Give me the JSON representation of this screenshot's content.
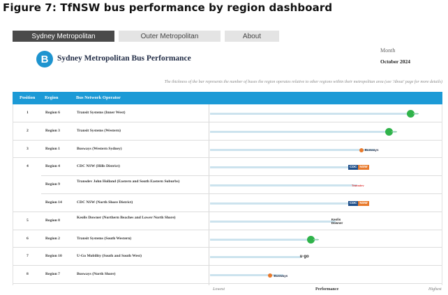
{
  "figure_title": "Figure 7: TfNSW bus performance by region dashboard",
  "tabs": [
    {
      "label": "Sydney Metropolitan",
      "active": true
    },
    {
      "label": "Outer Metropolitan",
      "active": false
    },
    {
      "label": "About",
      "active": false
    }
  ],
  "logo_letter": "B",
  "dashboard_title": "Sydney Metropolitan Bus Performance",
  "month": {
    "label": "Month",
    "value": "October 2024"
  },
  "note": "The thickness of the bar represents the number of buses the region operates relative to other regions within their metropolitan area (see 'About' page for more details)",
  "table": {
    "columns": [
      "Position",
      "Region",
      "Bus Network Operator"
    ],
    "rows": [
      {
        "position": "1",
        "region": "Region 6",
        "operator": "Transit Systems (Inner West)",
        "performance": 0.96,
        "brand": "transit-systems-logo"
      },
      {
        "position": "2",
        "region": "Region 3",
        "operator": "Transit Systems (Western)",
        "performance": 0.86,
        "brand": "transit-systems-logo"
      },
      {
        "position": "3",
        "region": "Region 1",
        "operator": "Busways (Western Sydney)",
        "performance": 0.76,
        "brand": "busways-logo",
        "brand_text": "Busways"
      },
      {
        "position": "4",
        "region": "Region 4",
        "operator": "CDC NSW (Hills District)",
        "performance": 0.68,
        "brand": "cdc-logo",
        "brand_text_a": "CDC",
        "brand_text_b": "NSW"
      },
      {
        "position": "",
        "region": "Region 9",
        "operator": "Transdev John Holland (Eastern and South Eastern Suburbs)",
        "performance": 0.68,
        "brand": "transdev-logo",
        "brand_text": "Transdev"
      },
      {
        "position": "",
        "region": "Region 14",
        "operator": "CDC NSW (North Shore District)",
        "performance": 0.68,
        "brand": "cdc-logo",
        "brand_text_a": "CDC",
        "brand_text_b": "NSW"
      },
      {
        "position": "5",
        "region": "Region 8",
        "operator": "Keolis Downer (Northern Beaches and Lower North Shore)",
        "performance": 0.58,
        "brand": "keolis-downer-logo",
        "brand_text_a": "Keolis",
        "brand_text_b": "Downer"
      },
      {
        "position": "6",
        "region": "Region 2",
        "operator": "Transit Systems (South Western)",
        "performance": 0.5,
        "brand": "transit-systems-logo"
      },
      {
        "position": "7",
        "region": "Region 10",
        "operator": "U-Go Mobility (South and South West)",
        "performance": 0.42,
        "brand": "ugo-logo",
        "brand_text": "u·go"
      },
      {
        "position": "8",
        "region": "Region 7",
        "operator": "Busways (North Shore)",
        "performance": 0.34,
        "brand": "busways-logo",
        "brand_text": "Busways"
      }
    ]
  },
  "axis": {
    "low": "Lowest",
    "mid": "Performance",
    "high": "Highest"
  },
  "colors": {
    "accent": "#1c9ad6",
    "logo": "#1e94cf",
    "transit_green": "#2fb34a",
    "bar": "#cce3ee"
  }
}
